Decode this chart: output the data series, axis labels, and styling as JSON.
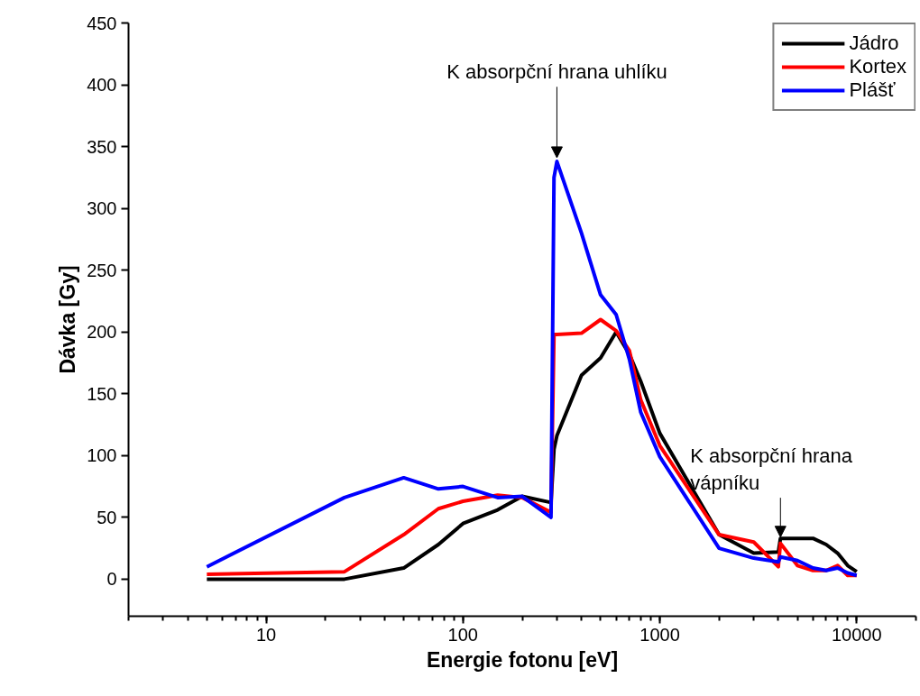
{
  "chart_data": {
    "type": "line",
    "xlabel": "Energie fotonu [eV]",
    "ylabel": "Dávka [Gy]",
    "log": "x",
    "x": [
      5,
      25,
      50,
      75,
      100,
      150,
      200,
      280,
      290,
      300,
      400,
      500,
      600,
      700,
      800,
      1000,
      2000,
      3000,
      4000,
      4100,
      5000,
      6000,
      7000,
      8000,
      9000,
      10000
    ],
    "series": [
      {
        "name": "Jádro",
        "color": "#000000",
        "values": [
          0,
          0,
          9,
          28,
          45,
          56,
          67,
          62,
          105,
          116,
          165,
          179,
          200,
          182,
          160,
          118,
          36,
          21,
          22,
          33,
          33,
          33,
          28,
          21,
          11,
          6
        ]
      },
      {
        "name": "Kortex",
        "color": "#ff0000",
        "values": [
          4,
          6,
          36,
          57,
          63,
          68,
          66,
          54,
          198,
          198,
          199,
          210,
          201,
          185,
          145,
          108,
          36,
          30,
          10,
          29,
          11,
          7,
          7,
          11,
          3,
          3
        ]
      },
      {
        "name": "Plášť",
        "color": "#0000ff",
        "values": [
          10,
          66,
          82,
          73,
          75,
          66,
          67,
          50,
          325,
          338,
          280,
          230,
          214,
          178,
          135,
          99,
          25,
          17,
          14,
          18,
          15,
          9,
          7,
          9,
          5,
          3
        ]
      }
    ],
    "xlim": [
      2,
      20000
    ],
    "xticks": [
      10,
      100,
      1000,
      10000
    ],
    "ylim": [
      -30,
      450
    ],
    "yticks": [
      0,
      50,
      100,
      150,
      200,
      250,
      300,
      350,
      400,
      450
    ],
    "grid": false,
    "legend": "top right",
    "marker": "none",
    "line_style": "solid",
    "annotations": [
      {
        "text": "K absorpční hrana uhlíku",
        "x": 300,
        "y": 340
      },
      {
        "text": "K absorpční hrana\nvápníku",
        "x": 4100,
        "y": 33
      }
    ]
  }
}
